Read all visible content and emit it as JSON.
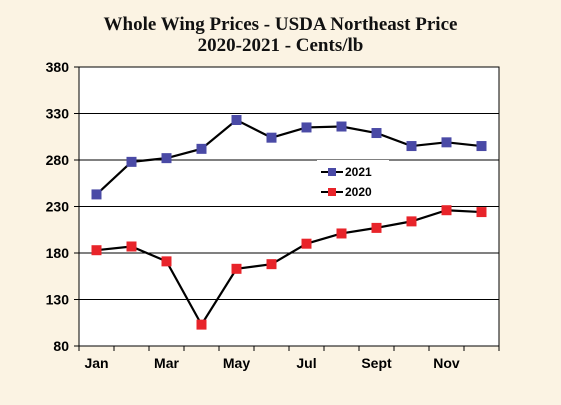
{
  "chart_data": {
    "type": "line",
    "title": "Whole Wing Prices - USDA Northeast Price",
    "subtitle": "2020-2021 - Cents/lb",
    "ylim": [
      80,
      380
    ],
    "yticks": [
      80,
      130,
      180,
      230,
      280,
      330,
      380
    ],
    "x": [
      "Jan",
      "Feb",
      "Mar",
      "Apr",
      "May",
      "Jun",
      "Jul",
      "Aug",
      "Sept",
      "Oct",
      "Nov",
      "Dec"
    ],
    "xtick_labels": [
      "Jan",
      "Mar",
      "May",
      "Jul",
      "Sept",
      "Nov"
    ],
    "grid": "horizontal",
    "legend_position": "center-right",
    "series": [
      {
        "name": "2021",
        "color": "#4a4aa6",
        "values": [
          243,
          278,
          282,
          292,
          323,
          304,
          315,
          316,
          309,
          295,
          299,
          295
        ]
      },
      {
        "name": "2020",
        "color": "#e8242a",
        "values": [
          183,
          187,
          171,
          103,
          163,
          168,
          190,
          201,
          207,
          214,
          226,
          224
        ]
      }
    ]
  }
}
